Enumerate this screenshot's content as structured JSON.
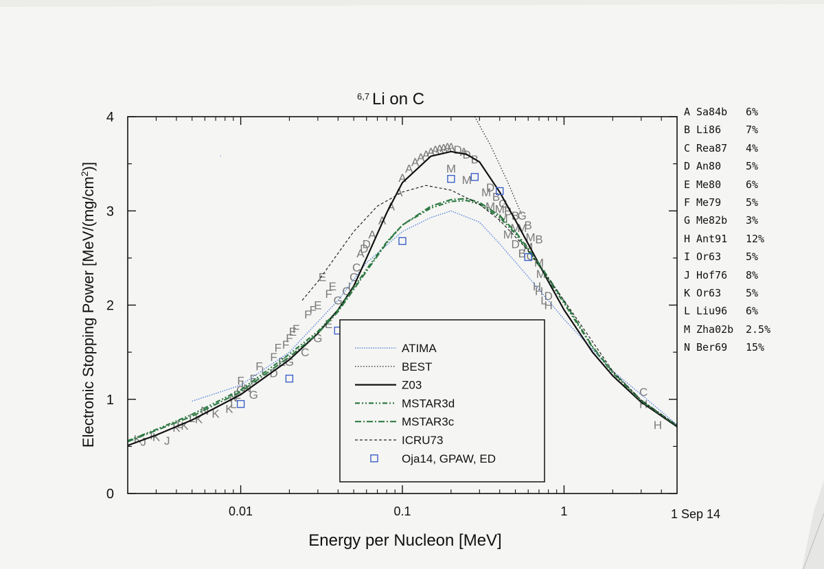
{
  "chart_data": {
    "type": "line",
    "title_prefix": "6,7",
    "title_main": "Li on C",
    "xlabel": "Energy per Nucleon [MeV]",
    "ylabel_main": "Electronic Stopping Power [MeV/(mg/cm",
    "ylabel_sup": "2",
    "ylabel_end": ")]",
    "xscale": "log",
    "xlim": [
      0.002,
      5
    ],
    "ylim": [
      0,
      4
    ],
    "x_ticks": [
      {
        "value": 0.01,
        "label": "0.01"
      },
      {
        "value": 0.1,
        "label": "0.1"
      },
      {
        "value": 1,
        "label": "1"
      }
    ],
    "y_ticks": [
      {
        "value": 0,
        "label": "0"
      },
      {
        "value": 1,
        "label": "1"
      },
      {
        "value": 2,
        "label": "2"
      },
      {
        "value": 3,
        "label": "3"
      },
      {
        "value": 4,
        "label": "4"
      }
    ],
    "date_stamp": "1 Sep 14",
    "legend_position": "bottom-center",
    "series": [
      {
        "name": "ATIMA",
        "color": "#3a6fd8",
        "style": "dotted-fine",
        "points": [
          [
            0.005,
            0.98
          ],
          [
            0.01,
            1.15
          ],
          [
            0.02,
            1.5
          ],
          [
            0.04,
            2.05
          ],
          [
            0.06,
            2.45
          ],
          [
            0.1,
            2.78
          ],
          [
            0.15,
            2.93
          ],
          [
            0.2,
            3.0
          ],
          [
            0.3,
            2.88
          ],
          [
            0.4,
            2.65
          ],
          [
            0.6,
            2.3
          ],
          [
            1.0,
            1.85
          ],
          [
            2.0,
            1.3
          ],
          [
            3.0,
            1.05
          ],
          [
            5.0,
            0.73
          ]
        ]
      },
      {
        "name": "BEST",
        "color": "#333333",
        "style": "dotted",
        "points": [
          [
            0.28,
            4.0
          ],
          [
            0.35,
            3.7
          ],
          [
            0.45,
            3.3
          ],
          [
            0.55,
            2.95
          ]
        ]
      },
      {
        "name": "Z03",
        "color": "#111111",
        "style": "solid",
        "points": [
          [
            0.002,
            0.51
          ],
          [
            0.003,
            0.62
          ],
          [
            0.005,
            0.78
          ],
          [
            0.01,
            1.05
          ],
          [
            0.02,
            1.42
          ],
          [
            0.03,
            1.7
          ],
          [
            0.04,
            1.95
          ],
          [
            0.05,
            2.2
          ],
          [
            0.06,
            2.5
          ],
          [
            0.08,
            2.98
          ],
          [
            0.1,
            3.3
          ],
          [
            0.15,
            3.58
          ],
          [
            0.2,
            3.63
          ],
          [
            0.25,
            3.6
          ],
          [
            0.3,
            3.52
          ],
          [
            0.4,
            3.2
          ],
          [
            0.5,
            2.9
          ],
          [
            0.6,
            2.65
          ],
          [
            0.8,
            2.25
          ],
          [
            1.0,
            1.95
          ],
          [
            1.5,
            1.5
          ],
          [
            2.0,
            1.25
          ],
          [
            3.0,
            0.97
          ],
          [
            5.0,
            0.71
          ]
        ]
      },
      {
        "name": "MSTAR3d",
        "color": "#2f7a44",
        "style": "dash-dot-dot",
        "points": [
          [
            0.002,
            0.56
          ],
          [
            0.003,
            0.68
          ],
          [
            0.005,
            0.84
          ],
          [
            0.01,
            1.1
          ],
          [
            0.02,
            1.48
          ],
          [
            0.03,
            1.72
          ],
          [
            0.04,
            1.95
          ],
          [
            0.06,
            2.38
          ],
          [
            0.08,
            2.67
          ],
          [
            0.1,
            2.85
          ],
          [
            0.15,
            3.03
          ],
          [
            0.2,
            3.1
          ],
          [
            0.25,
            3.11
          ],
          [
            0.3,
            3.07
          ],
          [
            0.4,
            2.93
          ],
          [
            0.5,
            2.76
          ],
          [
            0.7,
            2.42
          ],
          [
            1.0,
            2.02
          ],
          [
            1.5,
            1.55
          ],
          [
            2.0,
            1.28
          ],
          [
            3.0,
            0.98
          ],
          [
            5.0,
            0.72
          ]
        ]
      },
      {
        "name": "MSTAR3c",
        "color": "#2f7a44",
        "style": "dash-dot",
        "points": [
          [
            0.002,
            0.55
          ],
          [
            0.003,
            0.67
          ],
          [
            0.005,
            0.82
          ],
          [
            0.01,
            1.08
          ],
          [
            0.02,
            1.45
          ],
          [
            0.03,
            1.7
          ],
          [
            0.04,
            1.93
          ],
          [
            0.06,
            2.36
          ],
          [
            0.08,
            2.66
          ],
          [
            0.1,
            2.85
          ],
          [
            0.15,
            3.05
          ],
          [
            0.2,
            3.12
          ],
          [
            0.25,
            3.13
          ],
          [
            0.3,
            3.09
          ],
          [
            0.4,
            2.95
          ],
          [
            0.5,
            2.78
          ],
          [
            0.7,
            2.44
          ],
          [
            1.0,
            2.04
          ],
          [
            1.5,
            1.56
          ],
          [
            2.0,
            1.29
          ],
          [
            3.0,
            0.99
          ],
          [
            5.0,
            0.72
          ]
        ]
      },
      {
        "name": "ICRU73",
        "color": "#222222",
        "style": "dashed",
        "points": [
          [
            0.024,
            2.05
          ],
          [
            0.03,
            2.25
          ],
          [
            0.04,
            2.55
          ],
          [
            0.05,
            2.78
          ],
          [
            0.07,
            3.05
          ],
          [
            0.1,
            3.2
          ],
          [
            0.14,
            3.27
          ],
          [
            0.2,
            3.22
          ],
          [
            0.3,
            3.07
          ],
          [
            0.4,
            2.9
          ],
          [
            0.6,
            2.58
          ],
          [
            1.0,
            2.05
          ],
          [
            2.0,
            1.3
          ],
          [
            3.0,
            0.99
          ],
          [
            5.0,
            0.72
          ]
        ]
      }
    ],
    "oja14": {
      "name": "Oja14, GPAW, ED",
      "color": "#3a5fc8",
      "points": [
        [
          0.01,
          0.95
        ],
        [
          0.02,
          1.22
        ],
        [
          0.04,
          1.73
        ],
        [
          0.1,
          2.68
        ],
        [
          0.2,
          3.34
        ],
        [
          0.28,
          3.36
        ],
        [
          0.4,
          3.21
        ],
        [
          0.6,
          2.51
        ]
      ]
    },
    "letter_points": [
      [
        "K",
        0.0023,
        0.58
      ],
      [
        "J",
        0.0025,
        0.55
      ],
      [
        "I",
        0.0028,
        0.62
      ],
      [
        "K",
        0.003,
        0.6
      ],
      [
        "J",
        0.0035,
        0.56
      ],
      [
        "K",
        0.004,
        0.7
      ],
      [
        "L",
        0.0042,
        0.74
      ],
      [
        "K",
        0.0045,
        0.72
      ],
      [
        "L",
        0.005,
        0.8
      ],
      [
        "K",
        0.0055,
        0.79
      ],
      [
        "N",
        0.006,
        0.88
      ],
      [
        "K",
        0.007,
        0.85
      ],
      [
        "K",
        0.0085,
        0.9
      ],
      [
        "L",
        0.009,
        0.95
      ],
      [
        "N",
        0.009,
        1.02
      ],
      [
        "E",
        0.0095,
        1.05
      ],
      [
        "F",
        0.01,
        1.2
      ],
      [
        "G",
        0.01,
        1.1
      ],
      [
        "L",
        0.0105,
        1.15
      ],
      [
        "N",
        0.011,
        1.12
      ],
      [
        "E",
        0.012,
        1.22
      ],
      [
        "G",
        0.012,
        1.05
      ],
      [
        "F",
        0.013,
        1.35
      ],
      [
        "L",
        0.014,
        1.3
      ],
      [
        "D",
        0.016,
        1.28
      ],
      [
        "F",
        0.016,
        1.45
      ],
      [
        "F",
        0.017,
        1.55
      ],
      [
        "E",
        0.018,
        1.4
      ],
      [
        "F",
        0.019,
        1.58
      ],
      [
        "F",
        0.02,
        1.65
      ],
      [
        "E",
        0.021,
        1.72
      ],
      [
        "F",
        0.022,
        1.75
      ],
      [
        "G",
        0.02,
        1.4
      ],
      [
        "C",
        0.025,
        1.5
      ],
      [
        "F",
        0.026,
        1.9
      ],
      [
        "F",
        0.028,
        1.95
      ],
      [
        "E",
        0.03,
        2.0
      ],
      [
        "E",
        0.032,
        2.3
      ],
      [
        "F",
        0.035,
        2.12
      ],
      [
        "E",
        0.035,
        1.8
      ],
      [
        "G",
        0.03,
        1.65
      ],
      [
        "E",
        0.037,
        2.2
      ],
      [
        "G",
        0.04,
        2.05
      ],
      [
        "C",
        0.045,
        2.15
      ],
      [
        "I",
        0.047,
        2.2
      ],
      [
        "C",
        0.05,
        2.3
      ],
      [
        "C",
        0.052,
        2.4
      ],
      [
        "A",
        0.055,
        2.55
      ],
      [
        "D",
        0.058,
        2.6
      ],
      [
        "D",
        0.06,
        2.65
      ],
      [
        "A",
        0.065,
        2.75
      ],
      [
        "A",
        0.075,
        2.9
      ],
      [
        "A",
        0.085,
        3.05
      ],
      [
        "A",
        0.095,
        3.2
      ],
      [
        "A",
        0.1,
        3.35
      ],
      [
        "A",
        0.11,
        3.45
      ],
      [
        "A",
        0.12,
        3.52
      ],
      [
        "A",
        0.13,
        3.57
      ],
      [
        "A",
        0.14,
        3.6
      ],
      [
        "A",
        0.15,
        3.63
      ],
      [
        "A",
        0.16,
        3.65
      ],
      [
        "A",
        0.17,
        3.66
      ],
      [
        "A",
        0.18,
        3.67
      ],
      [
        "A",
        0.19,
        3.68
      ],
      [
        "A",
        0.2,
        3.68
      ],
      [
        "D",
        0.22,
        3.65
      ],
      [
        "A",
        0.24,
        3.63
      ],
      [
        "D",
        0.25,
        3.6
      ],
      [
        "B",
        0.28,
        3.55
      ],
      [
        "M",
        0.2,
        3.45
      ],
      [
        "M",
        0.25,
        3.33
      ],
      [
        "M",
        0.33,
        3.2
      ],
      [
        "M",
        0.35,
        3.05
      ],
      [
        "M",
        0.4,
        3.02
      ],
      [
        "M",
        0.42,
        2.92
      ],
      [
        "M",
        0.45,
        2.75
      ],
      [
        "M",
        0.5,
        2.82
      ],
      [
        "M",
        0.55,
        2.82
      ],
      [
        "M",
        0.6,
        2.62
      ],
      [
        "M",
        0.62,
        2.72
      ],
      [
        "M",
        0.7,
        2.45
      ],
      [
        "M",
        0.72,
        2.33
      ],
      [
        "D",
        0.35,
        3.25
      ],
      [
        "B",
        0.38,
        3.15
      ],
      [
        "B",
        0.45,
        3.0
      ],
      [
        "B",
        0.5,
        2.95
      ],
      [
        "B",
        0.6,
        2.85
      ],
      [
        "B",
        0.7,
        2.7
      ],
      [
        "D",
        0.5,
        2.65
      ],
      [
        "B",
        0.55,
        2.55
      ],
      [
        "C",
        0.62,
        2.52
      ],
      [
        "G",
        0.42,
        3.08
      ],
      [
        "G",
        0.55,
        2.95
      ],
      [
        "D",
        0.8,
        2.1
      ],
      [
        "L",
        0.75,
        2.05
      ],
      [
        "H",
        0.68,
        2.2
      ],
      [
        "H",
        0.7,
        2.15
      ],
      [
        "H",
        0.8,
        2.0
      ],
      [
        "C",
        3.1,
        1.08
      ],
      [
        "H",
        3.1,
        0.95
      ],
      [
        "H",
        3.8,
        0.73
      ]
    ]
  },
  "legend_items": [
    {
      "label": "ATIMA"
    },
    {
      "label": "BEST"
    },
    {
      "label": "Z03"
    },
    {
      "label": "MSTAR3d"
    },
    {
      "label": "MSTAR3c"
    },
    {
      "label": "ICRU73"
    },
    {
      "label": "Oja14, GPAW, ED"
    }
  ],
  "references": [
    {
      "letter": "A",
      "name": "Sa84b",
      "error": "6%"
    },
    {
      "letter": "B",
      "name": "Li86",
      "error": "7%"
    },
    {
      "letter": "C",
      "name": "Rea87",
      "error": "4%"
    },
    {
      "letter": "D",
      "name": "An80",
      "error": "5%"
    },
    {
      "letter": "E",
      "name": "Me80",
      "error": "6%"
    },
    {
      "letter": "F",
      "name": "Me79",
      "error": "5%"
    },
    {
      "letter": "G",
      "name": "Me82b",
      "error": "3%"
    },
    {
      "letter": "H",
      "name": "Ant91",
      "error": "12%"
    },
    {
      "letter": "I",
      "name": "Or63",
      "error": "5%"
    },
    {
      "letter": "J",
      "name": "Hof76",
      "error": "8%"
    },
    {
      "letter": "K",
      "name": "Or63",
      "error": "5%"
    },
    {
      "letter": "L",
      "name": "Liu96",
      "error": "6%"
    },
    {
      "letter": "M",
      "name": "Zha02b",
      "error": "2.5%"
    },
    {
      "letter": "N",
      "name": "Ber69",
      "error": "15%"
    }
  ]
}
